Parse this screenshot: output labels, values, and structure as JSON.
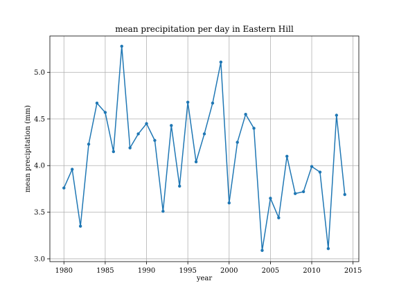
{
  "chart_data": {
    "type": "line",
    "title": "mean precipitation per day in Eastern Hill",
    "xlabel": "year",
    "ylabel": "mean precipitation (mm)",
    "xlim": [
      1978.3,
      2015.7
    ],
    "ylim": [
      2.97,
      5.39
    ],
    "xticks": [
      1980,
      1985,
      1990,
      1995,
      2000,
      2005,
      2010,
      2015
    ],
    "yticks": [
      3.0,
      3.5,
      4.0,
      4.5,
      5.0
    ],
    "xtick_labels": [
      "1980",
      "1985",
      "1990",
      "1995",
      "2000",
      "2005",
      "2010",
      "2015"
    ],
    "ytick_labels": [
      "3.0",
      "3.5",
      "4.0",
      "4.5",
      "5.0"
    ],
    "grid": true,
    "color": "#1f77b4",
    "marker": "dot",
    "series": [
      {
        "x": [
          1980,
          1981,
          1982,
          1983,
          1984,
          1985,
          1986,
          1987,
          1988,
          1989,
          1990,
          1991,
          1992,
          1993,
          1994,
          1995,
          1996,
          1997,
          1998,
          1999,
          2000,
          2001,
          2002,
          2003,
          2004,
          2005,
          2006,
          2007,
          2008,
          2009,
          2010,
          2011,
          2012,
          2013,
          2014
        ],
        "values": [
          3.76,
          3.96,
          3.35,
          4.23,
          4.67,
          4.57,
          4.15,
          5.28,
          4.19,
          4.34,
          4.45,
          4.27,
          3.51,
          4.43,
          3.78,
          4.68,
          4.04,
          4.34,
          4.67,
          5.11,
          3.6,
          4.25,
          4.55,
          4.4,
          3.09,
          3.65,
          3.44,
          4.1,
          3.7,
          3.72,
          3.99,
          3.93,
          3.11,
          4.54,
          3.69
        ]
      }
    ]
  }
}
